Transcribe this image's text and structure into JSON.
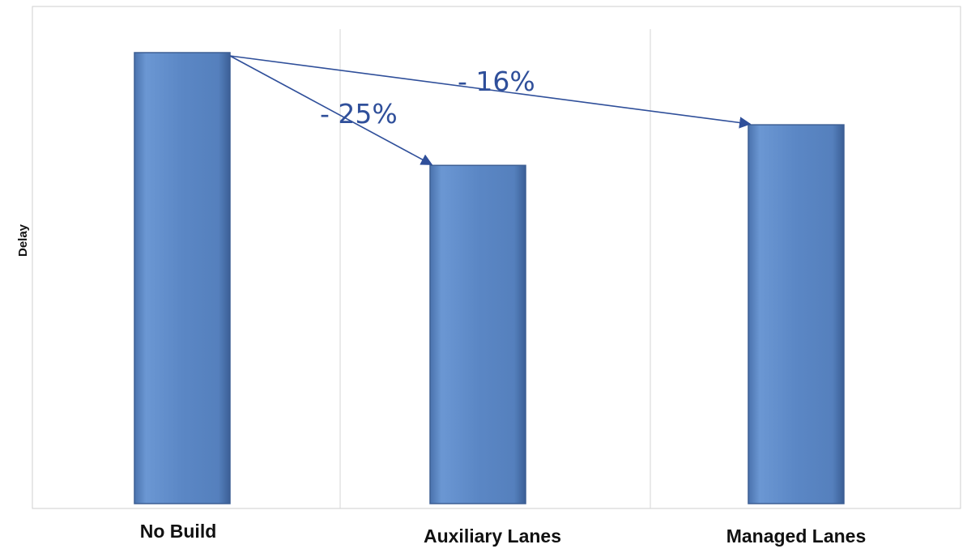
{
  "chart_data": {
    "type": "bar",
    "title": "",
    "xlabel": "",
    "ylabel": "Delay",
    "categories": [
      "No Build",
      "Auxiliary Lanes",
      "Managed Lanes"
    ],
    "values": [
      100,
      75,
      84
    ],
    "ylim": [
      0,
      100
    ],
    "grid": false,
    "legend": "none",
    "annotations": [
      {
        "text": "- 25%",
        "from": "No Build",
        "to": "Auxiliary Lanes"
      },
      {
        "text": "- 16%",
        "from": "No Build",
        "to": "Managed Lanes"
      }
    ]
  },
  "colors": {
    "bar": "#5b87c5",
    "bar_edge": "#3d5f94",
    "arrow": "#2f4f9a",
    "plot_border": "#cfcfcf"
  }
}
